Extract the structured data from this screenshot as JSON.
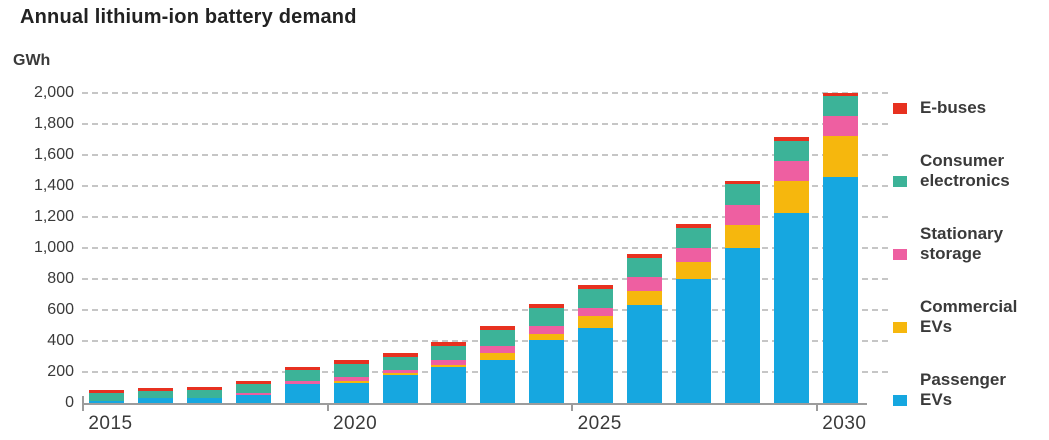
{
  "title": "Annual lithium-ion battery demand",
  "y_axis": {
    "unit": "GWh",
    "tick_labels": [
      "2,000",
      "1,800",
      "1,600",
      "1,400",
      "1,200",
      "1,000",
      "800",
      "600",
      "400",
      "200",
      "0"
    ],
    "tick_values": [
      2000,
      1800,
      1600,
      1400,
      1200,
      1000,
      800,
      600,
      400,
      200,
      0
    ]
  },
  "x_axis": {
    "labels": [
      "2015",
      "2020",
      "2025",
      "2030"
    ],
    "label_bar_indices": [
      0,
      5,
      10,
      15
    ]
  },
  "legend": [
    {
      "label": "E-buses",
      "color": "#e73120"
    },
    {
      "label": "Consumer electronics",
      "color": "#3cb398"
    },
    {
      "label": "Stationary storage",
      "color": "#ee5fa1"
    },
    {
      "label": "Commercial EVs",
      "color": "#f6b70d"
    },
    {
      "label": "Passenger EVs",
      "color": "#16a7e0"
    }
  ],
  "chart_data": {
    "type": "bar",
    "stacked": true,
    "title": "Annual lithium-ion battery demand",
    "xlabel": "",
    "ylabel": "GWh",
    "ylim": [
      0,
      2000
    ],
    "y_tick_step": 200,
    "grid": "dashed horizontal",
    "legend_position": "right",
    "categories": [
      2015,
      2016,
      2017,
      2018,
      2019,
      2020,
      2021,
      2022,
      2023,
      2024,
      2025,
      2026,
      2027,
      2028,
      2029,
      2030
    ],
    "series": [
      {
        "name": "Passenger EVs",
        "color": "#16a7e0",
        "values": [
          15,
          30,
          35,
          50,
          125,
          130,
          180,
          230,
          280,
          405,
          485,
          630,
          800,
          1000,
          1225,
          1455
        ]
      },
      {
        "name": "Commercial EVs",
        "color": "#f6b70d",
        "values": [
          0,
          0,
          0,
          0,
          0,
          15,
          15,
          15,
          40,
          40,
          75,
          95,
          110,
          150,
          210,
          270
        ]
      },
      {
        "name": "Stationary storage",
        "color": "#ee5fa1",
        "values": [
          0,
          0,
          0,
          15,
          20,
          20,
          20,
          35,
          50,
          55,
          55,
          90,
          90,
          130,
          125,
          125
        ]
      },
      {
        "name": "Consumer electronics",
        "color": "#3cb398",
        "values": [
          50,
          50,
          50,
          60,
          65,
          85,
          85,
          90,
          100,
          115,
          120,
          120,
          130,
          130,
          130,
          130
        ]
      },
      {
        "name": "E-buses",
        "color": "#e73120",
        "values": [
          20,
          20,
          20,
          20,
          20,
          25,
          25,
          25,
          25,
          25,
          25,
          25,
          25,
          20,
          25,
          20
        ]
      }
    ],
    "totals": [
      85,
      100,
      105,
      145,
      230,
      275,
      325,
      395,
      495,
      640,
      760,
      960,
      1155,
      1430,
      1715,
      2000
    ]
  }
}
